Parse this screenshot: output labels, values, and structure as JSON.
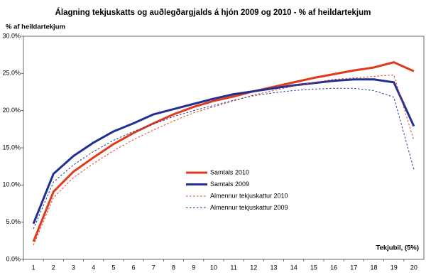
{
  "chart_data": {
    "type": "line",
    "title": "Álagning tekjuskatts og auðlegðargjalds á hjón 2009 og 2010 - % af heildartekjum",
    "y_label": "% af heildartekjum",
    "x_label": "Tekjubil, (5%)",
    "categories": [
      1,
      2,
      3,
      4,
      5,
      6,
      7,
      8,
      9,
      10,
      11,
      12,
      13,
      14,
      15,
      16,
      17,
      18,
      19,
      20
    ],
    "ylim": [
      0,
      30
    ],
    "yticks": [
      {
        "value": 0,
        "label": "0.0%"
      },
      {
        "value": 5,
        "label": "5.0%"
      },
      {
        "value": 10,
        "label": "10.0%"
      },
      {
        "value": 15,
        "label": "15.0%"
      },
      {
        "value": 20,
        "label": "20.0%"
      },
      {
        "value": 25,
        "label": "25.0%"
      },
      {
        "value": 30,
        "label": "30.0%"
      }
    ],
    "series": [
      {
        "name": "Samtals 2010",
        "color": "#e03a1e",
        "dashed": false,
        "values": [
          2.4,
          9.1,
          11.8,
          13.7,
          15.5,
          17.0,
          18.3,
          19.5,
          20.5,
          21.3,
          21.9,
          22.6,
          23.2,
          23.8,
          24.4,
          24.9,
          25.4,
          25.8,
          26.5,
          25.3
        ]
      },
      {
        "name": "Samtals 2009",
        "color": "#1f2f94",
        "dashed": false,
        "values": [
          4.8,
          11.5,
          13.9,
          15.7,
          17.2,
          18.3,
          19.5,
          20.2,
          20.9,
          21.6,
          22.2,
          22.6,
          23.0,
          23.4,
          23.7,
          24.0,
          24.2,
          24.2,
          23.8,
          17.9
        ]
      },
      {
        "name": "Almennur tekjuskattur 2010",
        "color": "#e03a1e",
        "dashed": true,
        "values": [
          1.9,
          8.3,
          11.0,
          12.9,
          14.6,
          16.1,
          17.4,
          18.6,
          19.7,
          20.5,
          21.3,
          22.1,
          22.7,
          23.3,
          23.8,
          24.2,
          24.4,
          24.6,
          24.8,
          16.0
        ]
      },
      {
        "name": "Almennur tekjuskattur 2009",
        "color": "#1f2f94",
        "dashed": true,
        "values": [
          4.1,
          10.4,
          12.7,
          14.5,
          16.0,
          17.2,
          18.2,
          19.2,
          20.0,
          20.7,
          21.4,
          22.0,
          22.4,
          22.7,
          22.9,
          23.0,
          23.0,
          22.7,
          21.8,
          12.1
        ]
      }
    ]
  }
}
